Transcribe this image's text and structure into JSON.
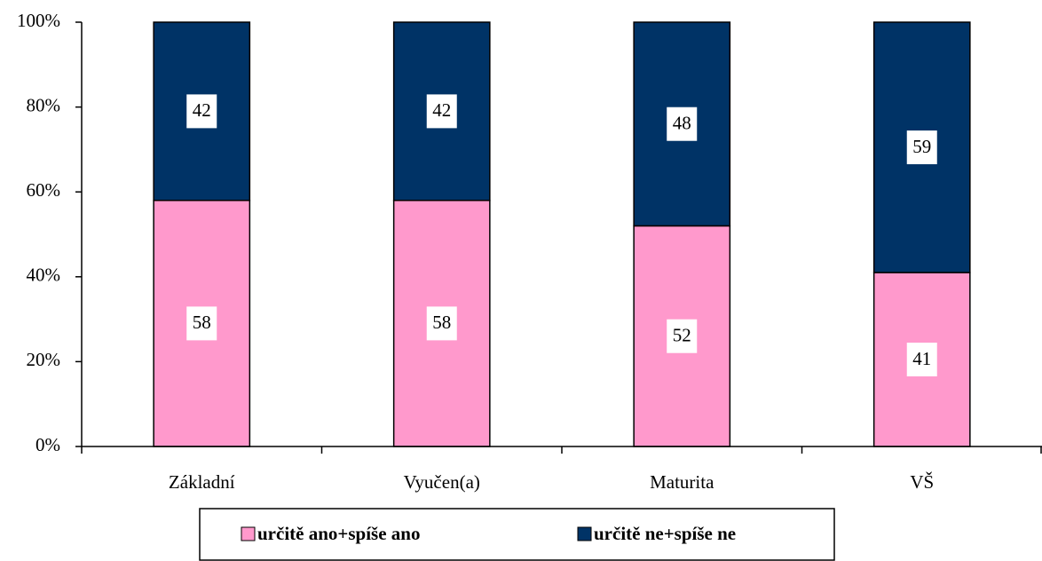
{
  "chart_data": {
    "type": "stacked_bar",
    "categories": [
      "Základní",
      "Vyučen(a)",
      "Maturita",
      "VŠ"
    ],
    "series": [
      {
        "name": "určitě ano+spíše ano",
        "color": "#ff99cc",
        "values": [
          58,
          58,
          52,
          41
        ]
      },
      {
        "name": "určitě ne+spíše ne",
        "color": "#003366",
        "values": [
          42,
          42,
          48,
          59
        ]
      }
    ],
    "ylim": [
      0,
      100
    ],
    "yticks": [
      {
        "value": 0,
        "label": "0%"
      },
      {
        "value": 20,
        "label": "20%"
      },
      {
        "value": 40,
        "label": "40%"
      },
      {
        "value": 60,
        "label": "60%"
      },
      {
        "value": 80,
        "label": "80%"
      },
      {
        "value": 100,
        "label": "100%"
      }
    ],
    "grid": false,
    "legend": "bottom"
  }
}
